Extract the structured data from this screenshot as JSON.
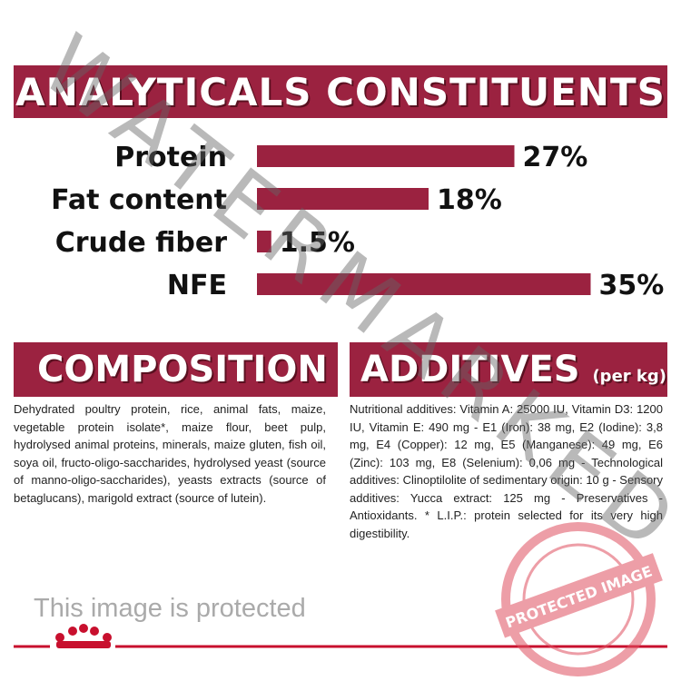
{
  "chart_data": {
    "type": "bar",
    "title": "ANALYTICALS CONSTITUENTS",
    "categories": [
      "Protein",
      "Fat content",
      "Crude fiber",
      "NFE"
    ],
    "values": [
      27,
      18,
      1.5,
      35
    ],
    "value_labels": [
      "27%",
      "18%",
      "1.5%",
      "35%"
    ],
    "color": "#9b2240",
    "orientation": "horizontal"
  },
  "composition": {
    "title": "COMPOSITION",
    "text": "Dehydrated poultry protein, rice, animal fats, maize, vegetable protein isolate*, maize flour, beet pulp, hydrolysed animal proteins, minerals, maize gluten, fish oil, soya oil, fructo-oligo-saccharides, hydrolysed yeast (source of manno-oligo-saccharides), yeasts extracts (source of betaglucans), marigold extract (source of lutein)."
  },
  "additives": {
    "title": "ADDITIVES",
    "unit": "(per kg)",
    "text": "Nutritional additives: Vitamin A: 25000 IU, Vitamin D3: 1200 IU, Vitamin E: 490 mg - E1 (Iron): 38 mg, E2 (Iodine): 3,8 mg, E4 (Copper): 12 mg, E5 (Manganese): 49 mg, E6 (Zinc): 103 mg, E8 (Selenium): 0,06 mg - Technological additives: Clinoptilolite of sedimentary origin: 10 g - Sensory additives: Yucca extract: 125 mg - Preservatives - Antioxidants. * L.I.P.: protein selected for its very high digestibility."
  },
  "watermark": {
    "text": "WATERMARKED",
    "notice": "This image is protected",
    "stamp": "PROTECTED IMAGE"
  }
}
